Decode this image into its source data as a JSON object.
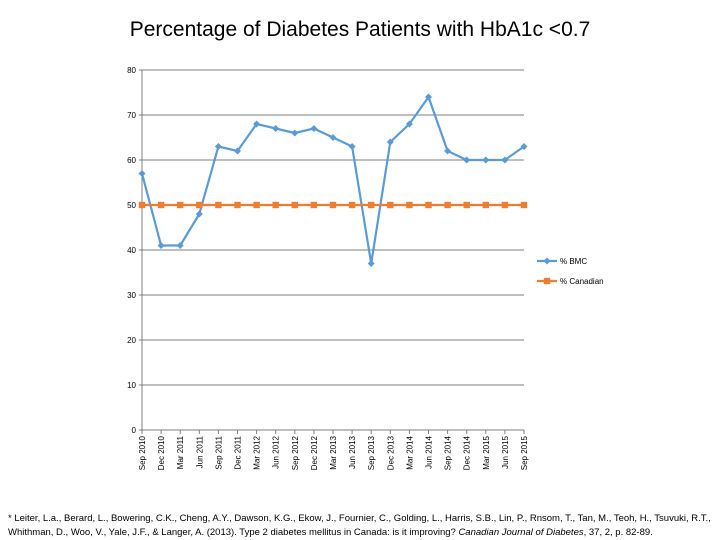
{
  "chart_data": {
    "type": "line",
    "title": "Percentage of Diabetes Patients with HbA1c <0.7",
    "categories": [
      "Sep 2010",
      "Dec 2010",
      "Mar 2011",
      "Jun 2011",
      "Sep 2011",
      "Dec 2011",
      "Mar 2012",
      "Jun 2012",
      "Sep 2012",
      "Dec 2012",
      "Mar 2013",
      "Jun 2013",
      "Sep 2013",
      "Dec 2013",
      "Mar 2014",
      "Jun 2014",
      "Sep 2014",
      "Dec 2014",
      "Mar 2015",
      "Jun 2015",
      "Sep 2015"
    ],
    "series": [
      {
        "name": "% BMC",
        "color": "#5b9bd5",
        "marker": "diamond",
        "values": [
          57,
          41,
          41,
          48,
          63,
          62,
          68,
          67,
          66,
          67,
          65,
          63,
          37,
          64,
          68,
          74,
          62,
          60,
          60,
          60,
          63
        ]
      },
      {
        "name": "% Canadian",
        "color": "#ed7d31",
        "marker": "square",
        "values": [
          50,
          50,
          50,
          50,
          50,
          50,
          50,
          50,
          50,
          50,
          50,
          50,
          50,
          50,
          50,
          50,
          50,
          50,
          50,
          50,
          50
        ]
      }
    ],
    "ylim": [
      0,
      80
    ],
    "yticks": [
      0,
      10,
      20,
      30,
      40,
      50,
      60,
      70,
      80
    ],
    "grid": true,
    "legend_position": "right"
  },
  "citation": {
    "authors": "* Leiter, L.a., Berard, L., Bowering, C.K., Cheng, A.Y., Dawson, K.G., Ekow, J., Fournier, C., Golding, L., Harris, S.B., Lin, P., Rnsom, T., Tan, M., Teoh, H., Tsuvuki, R.T., Whithman, D., Woo, V., Yale, J.F., & Langer, A. (2013). Type 2 diabetes mellitus in Canada: is it improving?",
    "journal": "Canadian Journal of Diabetes",
    "details": ", 37, 2, p. 82-89."
  }
}
